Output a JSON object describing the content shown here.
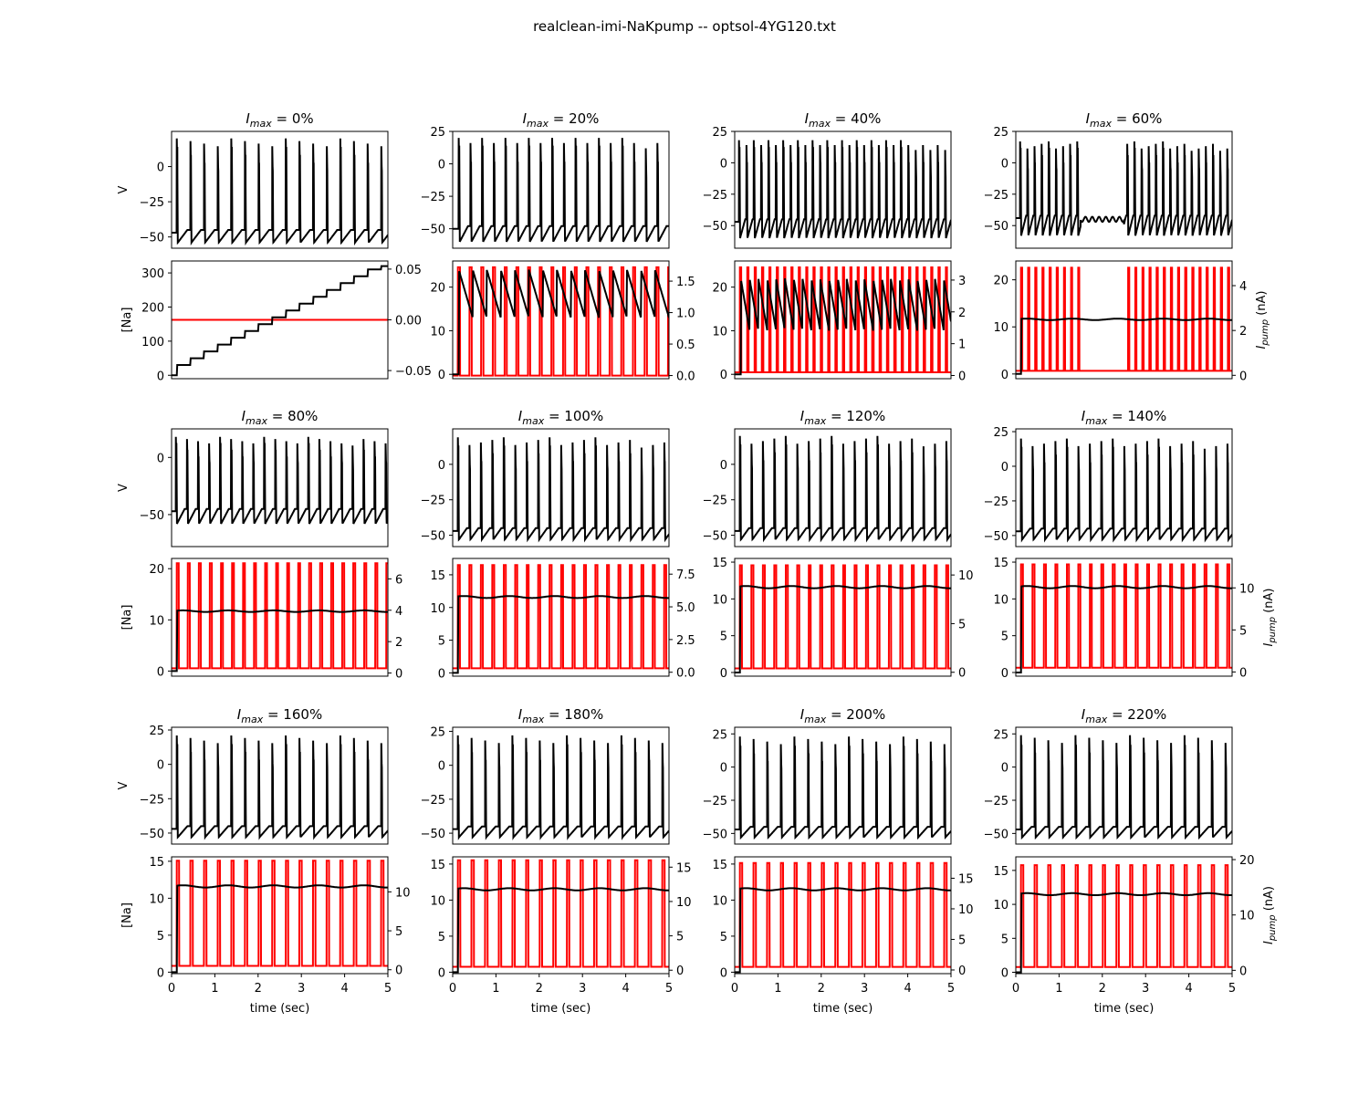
{
  "figure": {
    "title": "realclean-imi-NaKpump -- optsol-4YG120.txt"
  },
  "axis_text": {
    "v_ylabel": "V",
    "na_ylabel": "[Na]",
    "ipump_ylabel_main": "I",
    "ipump_ylabel_sub": "pump",
    "ipump_ylabel_unit": " (nA)",
    "xlabel": "time (sec)",
    "panel_title_main": "I",
    "panel_title_sub": "max"
  },
  "colors": {
    "voltage": "#000000",
    "sodium": "#000000",
    "pump_current": "#ff0000"
  },
  "chart_data": [
    {
      "type": "line",
      "title_value": " = 0%",
      "v": {
        "ylim": [
          -58,
          25
        ],
        "yticks": [
          -50,
          -25,
          0
        ],
        "period": 0.315,
        "start": 0.12,
        "peak": 20,
        "trough": -54,
        "plateau": -45
      },
      "na": {
        "ylim": [
          -10,
          335
        ],
        "yticks": [
          0,
          100,
          200,
          300
        ],
        "steady": null,
        "staircase": [
          0,
          320
        ]
      },
      "pump": {
        "ylim": [
          -0.058,
          0.058
        ],
        "yticks": [
          -0.05,
          0.0,
          0.05
        ],
        "ticklabels": [
          "−0.05",
          "0.00",
          "0.05"
        ],
        "flat": 0.0,
        "pulse": null,
        "label": false
      },
      "xlabel": false
    },
    {
      "type": "line",
      "title_value": " = 20%",
      "v": {
        "ylim": [
          -65,
          25
        ],
        "yticks": [
          -50,
          -25,
          0,
          25
        ],
        "period": 0.27,
        "start": 0.14,
        "peak": 20,
        "trough": -60,
        "plateau": -48
      },
      "na": {
        "ylim": [
          -1,
          26
        ],
        "yticks": [
          0,
          10,
          20
        ],
        "steady": null,
        "sawtooth": [
          24,
          13
        ]
      },
      "pump": {
        "ylim": [
          -0.05,
          1.82
        ],
        "yticks": [
          0.0,
          0.5,
          1.0,
          1.5
        ],
        "ticklabels": [
          "0.0",
          "0.5",
          "1.0",
          "1.5"
        ],
        "pulse": [
          0.0,
          1.72
        ],
        "period": 0.27,
        "label": false
      },
      "xlabel": false
    },
    {
      "type": "line",
      "title_value": " = 40%",
      "v": {
        "ylim": [
          -68,
          25
        ],
        "yticks": [
          -50,
          -25,
          0,
          25
        ],
        "period": 0.17,
        "start": 0.1,
        "peak": 18,
        "trough": -60,
        "plateau": -45
      },
      "na": {
        "ylim": [
          -1,
          26
        ],
        "yticks": [
          0,
          10,
          20
        ],
        "steady": null,
        "sawtooth": [
          22,
          10
        ]
      },
      "pump": {
        "ylim": [
          -0.1,
          3.6
        ],
        "yticks": [
          0,
          1,
          2,
          3
        ],
        "ticklabels": [
          "0",
          "1",
          "2",
          "3"
        ],
        "pulse": [
          0.1,
          3.4
        ],
        "period": 0.17,
        "label": false
      },
      "xlabel": false
    },
    {
      "type": "line",
      "title_value": " = 60%",
      "v": {
        "ylim": [
          -68,
          25
        ],
        "yticks": [
          -50,
          -25,
          0,
          25
        ],
        "period": 0.165,
        "start": 0.1,
        "peak": 17,
        "trough": -58,
        "plateau": -42,
        "gap": [
          1.5,
          2.5
        ]
      },
      "na": {
        "ylim": [
          -1,
          24
        ],
        "yticks": [
          0,
          10,
          20
        ],
        "steady": 11.6
      },
      "pump": {
        "ylim": [
          -0.15,
          5.1
        ],
        "yticks": [
          0,
          2,
          4
        ],
        "ticklabels": [
          "0",
          "2",
          "4"
        ],
        "pulse": [
          0.2,
          4.8
        ],
        "period": 0.165,
        "gap": [
          1.5,
          2.5
        ],
        "label": true
      },
      "xlabel": false
    },
    {
      "type": "line",
      "title_value": " = 80%",
      "v": {
        "ylim": [
          -78,
          25
        ],
        "yticks": [
          -50,
          0
        ],
        "period": 0.255,
        "start": 0.1,
        "peak": 18,
        "trough": -58,
        "plateau": -45
      },
      "na": {
        "ylim": [
          -1,
          22
        ],
        "yticks": [
          0,
          10,
          20
        ],
        "steady": 11.7
      },
      "pump": {
        "ylim": [
          -0.2,
          7.3
        ],
        "yticks": [
          0,
          2,
          4,
          6
        ],
        "ticklabels": [
          "0",
          "2",
          "4",
          "6"
        ],
        "pulse": [
          0.3,
          7.0
        ],
        "period": 0.255,
        "label": false
      },
      "xlabel": false
    },
    {
      "type": "line",
      "title_value": " = 100%",
      "v": {
        "ylim": [
          -58,
          25
        ],
        "yticks": [
          -50,
          -25,
          0
        ],
        "period": 0.265,
        "start": 0.12,
        "peak": 19,
        "trough": -53,
        "plateau": -45
      },
      "na": {
        "ylim": [
          -0.5,
          17.5
        ],
        "yticks": [
          0,
          5,
          10,
          15
        ],
        "steady": 11.6
      },
      "pump": {
        "ylim": [
          -0.3,
          8.7
        ],
        "yticks": [
          0.0,
          2.5,
          5.0,
          7.5
        ],
        "ticklabels": [
          "0.0",
          "2.5",
          "5.0",
          "7.5"
        ],
        "pulse": [
          0.3,
          8.2
        ],
        "period": 0.265,
        "label": false
      },
      "xlabel": false
    },
    {
      "type": "line",
      "title_value": " = 120%",
      "v": {
        "ylim": [
          -58,
          25
        ],
        "yticks": [
          -50,
          -25,
          0
        ],
        "period": 0.265,
        "start": 0.12,
        "peak": 20,
        "trough": -53,
        "plateau": -45
      },
      "na": {
        "ylim": [
          -0.5,
          15.5
        ],
        "yticks": [
          0,
          5,
          10,
          15
        ],
        "steady": 11.6
      },
      "pump": {
        "ylim": [
          -0.4,
          11.7
        ],
        "yticks": [
          0,
          5,
          10
        ],
        "ticklabels": [
          "0",
          "5",
          "10"
        ],
        "pulse": [
          0.4,
          11.0
        ],
        "period": 0.265,
        "label": false
      },
      "xlabel": false
    },
    {
      "type": "line",
      "title_value": " = 140%",
      "v": {
        "ylim": [
          -58,
          27
        ],
        "yticks": [
          -50,
          -25,
          0,
          25
        ],
        "period": 0.265,
        "start": 0.12,
        "peak": 20,
        "trough": -53,
        "plateau": -45
      },
      "na": {
        "ylim": [
          -0.5,
          15.5
        ],
        "yticks": [
          0,
          5,
          10,
          15
        ],
        "steady": 11.6
      },
      "pump": {
        "ylim": [
          -0.5,
          13.5
        ],
        "yticks": [
          0,
          5,
          10
        ],
        "ticklabels": [
          "0",
          "5",
          "10"
        ],
        "pulse": [
          0.5,
          12.8
        ],
        "period": 0.265,
        "label": true
      },
      "xlabel": false
    },
    {
      "type": "line",
      "title_value": " = 160%",
      "v": {
        "ylim": [
          -58,
          27
        ],
        "yticks": [
          -50,
          -25,
          0,
          25
        ],
        "period": 0.315,
        "start": 0.12,
        "peak": 21,
        "trough": -53,
        "plateau": -45
      },
      "na": {
        "ylim": [
          -0.2,
          15.6
        ],
        "yticks": [
          0,
          5,
          10,
          15
        ],
        "steady": 11.6
      },
      "pump": {
        "ylim": [
          -0.5,
          14.5
        ],
        "yticks": [
          0,
          5,
          10
        ],
        "ticklabels": [
          "0",
          "5",
          "10"
        ],
        "pulse": [
          0.5,
          14.0
        ],
        "period": 0.315,
        "label": false
      },
      "xlabel": true
    },
    {
      "type": "line",
      "title_value": " = 180%",
      "v": {
        "ylim": [
          -58,
          28
        ],
        "yticks": [
          -50,
          -25,
          0,
          25
        ],
        "period": 0.315,
        "start": 0.12,
        "peak": 22,
        "trough": -53,
        "plateau": -45
      },
      "na": {
        "ylim": [
          -0.2,
          16.0
        ],
        "yticks": [
          0,
          5,
          10,
          15
        ],
        "steady": 11.5
      },
      "pump": {
        "ylim": [
          -0.5,
          16.5
        ],
        "yticks": [
          0,
          5,
          10,
          15
        ],
        "ticklabels": [
          "0",
          "5",
          "10",
          "15"
        ],
        "pulse": [
          0.5,
          16.0
        ],
        "period": 0.315,
        "label": false
      },
      "xlabel": true
    },
    {
      "type": "line",
      "title_value": " = 200%",
      "v": {
        "ylim": [
          -58,
          30
        ],
        "yticks": [
          -50,
          -25,
          0,
          25
        ],
        "period": 0.315,
        "start": 0.12,
        "peak": 23,
        "trough": -53,
        "plateau": -45
      },
      "na": {
        "ylim": [
          -0.2,
          16.0
        ],
        "yticks": [
          0,
          5,
          10,
          15
        ],
        "steady": 11.5
      },
      "pump": {
        "ylim": [
          -0.6,
          18.5
        ],
        "yticks": [
          0,
          5,
          10,
          15
        ],
        "ticklabels": [
          "0",
          "5",
          "10",
          "15"
        ],
        "pulse": [
          0.5,
          17.5
        ],
        "period": 0.315,
        "label": false
      },
      "xlabel": true
    },
    {
      "type": "line",
      "title_value": " = 220%",
      "v": {
        "ylim": [
          -58,
          30
        ],
        "yticks": [
          -50,
          -25,
          0,
          25
        ],
        "period": 0.315,
        "start": 0.12,
        "peak": 24,
        "trough": -53,
        "plateau": -45
      },
      "na": {
        "ylim": [
          -0.2,
          17.0
        ],
        "yticks": [
          0,
          5,
          10,
          15
        ],
        "steady": 11.5
      },
      "pump": {
        "ylim": [
          -0.6,
          20.5
        ],
        "yticks": [
          0,
          10,
          20
        ],
        "ticklabels": [
          "0",
          "10",
          "20"
        ],
        "pulse": [
          0.6,
          19.0
        ],
        "period": 0.315,
        "label": true
      },
      "xlabel": true
    }
  ],
  "x_axis": {
    "xlim": [
      0,
      5
    ],
    "xticks": [
      0,
      1,
      2,
      3,
      4,
      5
    ],
    "ticklabels": [
      "0",
      "1",
      "2",
      "3",
      "4",
      "5"
    ]
  }
}
